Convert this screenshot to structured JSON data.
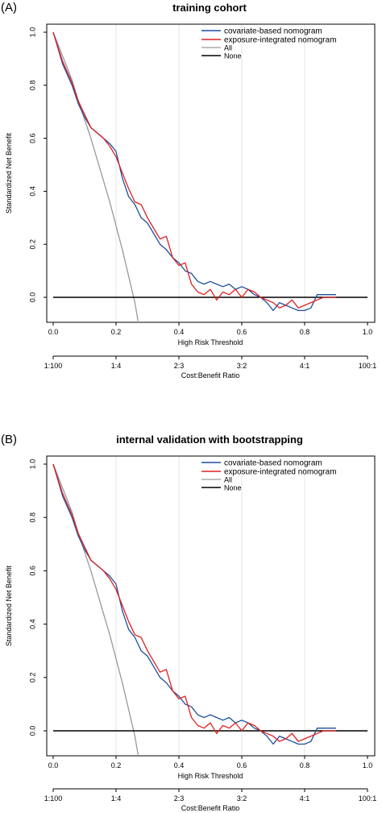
{
  "chart_data": [
    {
      "panel_label": "(A)",
      "type": "line",
      "title": "training cohort",
      "xlabel": "High Risk Threshold",
      "ylabel": "Standardized Net Benefit",
      "xlim": [
        0,
        1
      ],
      "ylim": [
        -0.08,
        1
      ],
      "x_ticks": [
        "0.0",
        "0.2",
        "0.4",
        "0.6",
        "0.8",
        "1.0"
      ],
      "y_ticks": [
        "0.0",
        "0.2",
        "0.4",
        "0.6",
        "0.8",
        "1.0"
      ],
      "secondary_axis": {
        "label": "Cost:Benefit Ratio",
        "ticks": [
          "1:100",
          "1:4",
          "2:3",
          "3:2",
          "4:1",
          "100:1"
        ]
      },
      "grid": true,
      "legend_position": "top-right",
      "series": [
        {
          "name": "covariate-based nomogram",
          "color": "#1f4e9c",
          "x": [
            0.0,
            0.03,
            0.06,
            0.08,
            0.1,
            0.12,
            0.14,
            0.16,
            0.18,
            0.2,
            0.22,
            0.24,
            0.26,
            0.28,
            0.3,
            0.32,
            0.34,
            0.36,
            0.38,
            0.4,
            0.42,
            0.44,
            0.46,
            0.48,
            0.5,
            0.52,
            0.54,
            0.56,
            0.58,
            0.6,
            0.62,
            0.64,
            0.66,
            0.68,
            0.7,
            0.72,
            0.74,
            0.76,
            0.78,
            0.8,
            0.82,
            0.84,
            0.86,
            0.88,
            0.9
          ],
          "y": [
            1.0,
            0.88,
            0.8,
            0.73,
            0.68,
            0.64,
            0.62,
            0.6,
            0.58,
            0.55,
            0.45,
            0.38,
            0.35,
            0.3,
            0.28,
            0.24,
            0.2,
            0.18,
            0.15,
            0.13,
            0.1,
            0.09,
            0.06,
            0.05,
            0.06,
            0.05,
            0.04,
            0.05,
            0.03,
            0.04,
            0.03,
            0.01,
            0.0,
            -0.02,
            -0.05,
            -0.02,
            -0.03,
            -0.04,
            -0.05,
            -0.05,
            -0.04,
            0.01,
            0.01,
            0.01,
            0.01
          ]
        },
        {
          "name": "exposure-integrated nomogram",
          "color": "#e02020",
          "x": [
            0.0,
            0.03,
            0.06,
            0.08,
            0.1,
            0.12,
            0.14,
            0.16,
            0.18,
            0.2,
            0.22,
            0.24,
            0.26,
            0.28,
            0.3,
            0.32,
            0.34,
            0.36,
            0.38,
            0.4,
            0.42,
            0.44,
            0.46,
            0.48,
            0.5,
            0.52,
            0.54,
            0.56,
            0.58,
            0.6,
            0.62,
            0.64,
            0.66,
            0.68,
            0.7,
            0.72,
            0.74,
            0.76,
            0.78,
            0.8,
            0.82,
            0.84,
            0.86,
            0.88,
            0.9
          ],
          "y": [
            1.0,
            0.89,
            0.81,
            0.74,
            0.69,
            0.64,
            0.62,
            0.6,
            0.57,
            0.53,
            0.47,
            0.41,
            0.36,
            0.35,
            0.3,
            0.26,
            0.22,
            0.23,
            0.15,
            0.12,
            0.13,
            0.05,
            0.02,
            0.01,
            0.03,
            -0.01,
            0.02,
            0.01,
            0.03,
            0.0,
            0.03,
            0.02,
            0.0,
            -0.01,
            -0.02,
            -0.04,
            -0.03,
            -0.01,
            -0.04,
            -0.03,
            -0.02,
            -0.01,
            0.0,
            0.0,
            0.0
          ]
        },
        {
          "name": "All",
          "color": "#999999",
          "x": [
            0.0,
            0.02,
            0.04,
            0.06,
            0.08,
            0.1,
            0.12,
            0.14,
            0.16,
            0.18,
            0.2,
            0.22,
            0.24,
            0.26,
            0.27
          ],
          "y": [
            1.0,
            0.94,
            0.88,
            0.82,
            0.74,
            0.67,
            0.6,
            0.52,
            0.44,
            0.36,
            0.27,
            0.18,
            0.08,
            -0.02,
            -0.09
          ]
        },
        {
          "name": "None",
          "color": "#000000",
          "x": [
            0.0,
            1.0
          ],
          "y": [
            0.0,
            0.0
          ]
        }
      ]
    },
    {
      "panel_label": "(B)",
      "type": "line",
      "title": "internal validation with bootstrapping",
      "xlabel": "High Risk Threshold",
      "ylabel": "Standardized Net Benefit",
      "xlim": [
        0,
        1
      ],
      "ylim": [
        -0.08,
        1
      ],
      "x_ticks": [
        "0.0",
        "0.2",
        "0.4",
        "0.6",
        "0.8",
        "1.0"
      ],
      "y_ticks": [
        "0.0",
        "0.2",
        "0.4",
        "0.6",
        "0.8",
        "1.0"
      ],
      "secondary_axis": {
        "label": "Cost:Benefit Ratio",
        "ticks": [
          "1:100",
          "1:4",
          "2:3",
          "3:2",
          "4:1",
          "100:1"
        ]
      },
      "grid": true,
      "legend_position": "top-right",
      "series": [
        {
          "name": "covariate-based nomogram",
          "color": "#1f4e9c",
          "x": [
            0.0,
            0.03,
            0.06,
            0.08,
            0.1,
            0.12,
            0.14,
            0.16,
            0.18,
            0.2,
            0.22,
            0.24,
            0.26,
            0.28,
            0.3,
            0.32,
            0.34,
            0.36,
            0.38,
            0.4,
            0.42,
            0.44,
            0.46,
            0.48,
            0.5,
            0.52,
            0.54,
            0.56,
            0.58,
            0.6,
            0.62,
            0.64,
            0.66,
            0.68,
            0.7,
            0.72,
            0.74,
            0.76,
            0.78,
            0.8,
            0.82,
            0.84,
            0.86,
            0.88,
            0.9
          ],
          "y": [
            1.0,
            0.88,
            0.8,
            0.73,
            0.68,
            0.64,
            0.62,
            0.6,
            0.58,
            0.55,
            0.45,
            0.38,
            0.35,
            0.3,
            0.28,
            0.24,
            0.2,
            0.18,
            0.15,
            0.13,
            0.1,
            0.09,
            0.06,
            0.05,
            0.06,
            0.05,
            0.04,
            0.05,
            0.03,
            0.04,
            0.03,
            0.01,
            0.0,
            -0.02,
            -0.05,
            -0.02,
            -0.03,
            -0.04,
            -0.05,
            -0.05,
            -0.04,
            0.01,
            0.01,
            0.01,
            0.01
          ]
        },
        {
          "name": "exposure-integrated nomogram",
          "color": "#e02020",
          "x": [
            0.0,
            0.03,
            0.06,
            0.08,
            0.1,
            0.12,
            0.14,
            0.16,
            0.18,
            0.2,
            0.22,
            0.24,
            0.26,
            0.28,
            0.3,
            0.32,
            0.34,
            0.36,
            0.38,
            0.4,
            0.42,
            0.44,
            0.46,
            0.48,
            0.5,
            0.52,
            0.54,
            0.56,
            0.58,
            0.6,
            0.62,
            0.64,
            0.66,
            0.68,
            0.7,
            0.72,
            0.74,
            0.76,
            0.78,
            0.8,
            0.82,
            0.84,
            0.86,
            0.88,
            0.9
          ],
          "y": [
            1.0,
            0.89,
            0.81,
            0.74,
            0.69,
            0.64,
            0.62,
            0.6,
            0.57,
            0.53,
            0.47,
            0.41,
            0.36,
            0.35,
            0.3,
            0.26,
            0.22,
            0.23,
            0.15,
            0.12,
            0.13,
            0.05,
            0.02,
            0.01,
            0.03,
            -0.01,
            0.02,
            0.01,
            0.03,
            0.0,
            0.03,
            0.02,
            0.0,
            -0.01,
            -0.02,
            -0.04,
            -0.03,
            -0.01,
            -0.04,
            -0.03,
            -0.02,
            -0.01,
            0.0,
            0.0,
            0.0
          ]
        },
        {
          "name": "All",
          "color": "#999999",
          "x": [
            0.0,
            0.02,
            0.04,
            0.06,
            0.08,
            0.1,
            0.12,
            0.14,
            0.16,
            0.18,
            0.2,
            0.22,
            0.24,
            0.26,
            0.27
          ],
          "y": [
            1.0,
            0.94,
            0.88,
            0.82,
            0.74,
            0.67,
            0.6,
            0.52,
            0.44,
            0.36,
            0.27,
            0.18,
            0.08,
            -0.02,
            -0.09
          ]
        },
        {
          "name": "None",
          "color": "#000000",
          "x": [
            0.0,
            1.0
          ],
          "y": [
            0.0,
            0.0
          ]
        }
      ]
    }
  ]
}
